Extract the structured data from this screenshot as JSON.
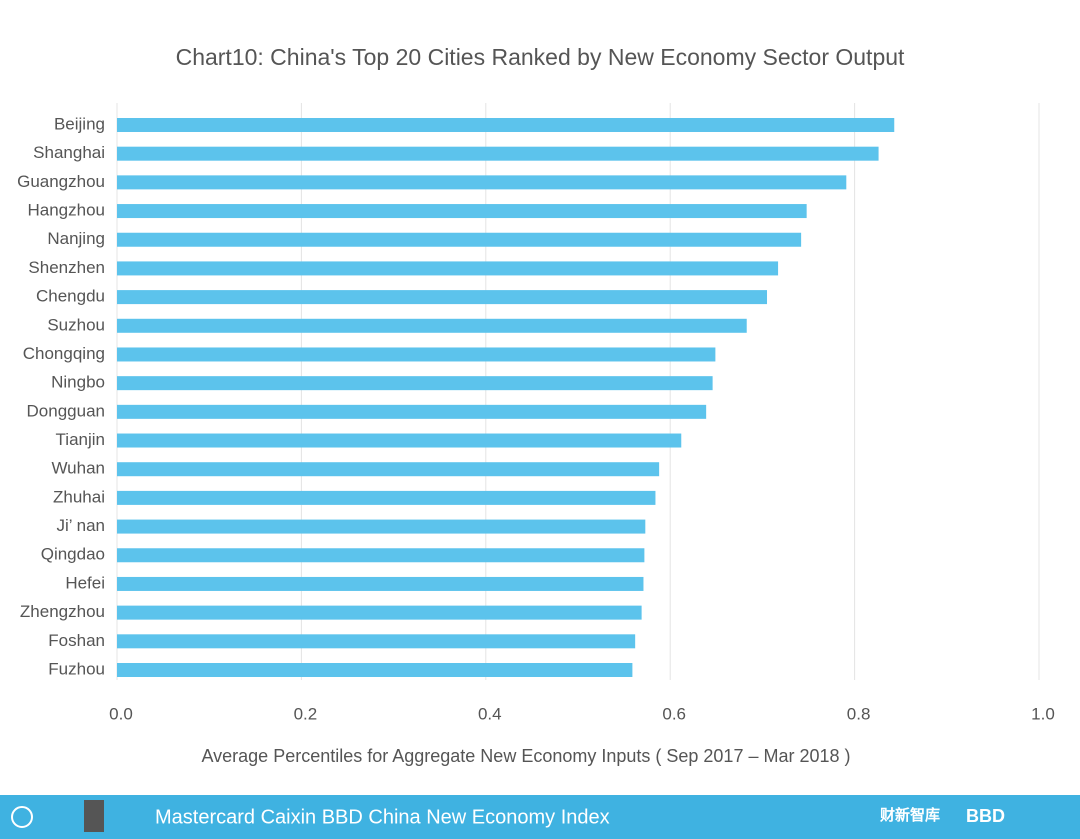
{
  "chart_data": {
    "type": "hbar",
    "title": "Chart10:  China's Top 20 Cities Ranked by New Economy Sector Output",
    "x_label": "Average Percentiles for Aggregate New Economy Inputs ( Sep 2017 – Mar 2018 )",
    "categories": [
      "Beijing",
      "Shanghai",
      "Guangzhou",
      "Hangzhou",
      "Nanjing",
      "Shenzhen",
      "Chengdu",
      "Suzhou",
      "Chongqing",
      "Ningbo",
      "Dongguan",
      "Tianjin",
      "Wuhan",
      "Zhuhai",
      "Ji’ nan",
      "Qingdao",
      "Hefei",
      "Zhengzhou",
      "Foshan",
      "Fuzhou"
    ],
    "values": [
      0.843,
      0.826,
      0.791,
      0.748,
      0.742,
      0.717,
      0.705,
      0.683,
      0.649,
      0.646,
      0.639,
      0.612,
      0.588,
      0.584,
      0.573,
      0.572,
      0.571,
      0.569,
      0.562,
      0.559
    ],
    "color": "#5cc3ec",
    "xlim": [
      0,
      1.0
    ],
    "xticks": [
      {
        "value": 0,
        "label": "0.0"
      },
      0.2,
      0.4,
      0.6,
      0.8,
      {
        "value": 1.0,
        "label": "1.0"
      }
    ],
    "grid": true
  },
  "footer": {
    "title": "Mastercard Caixin BBD China New Economy Index",
    "logo_caixin": "财新智库",
    "logo_bbd": "BBD"
  }
}
